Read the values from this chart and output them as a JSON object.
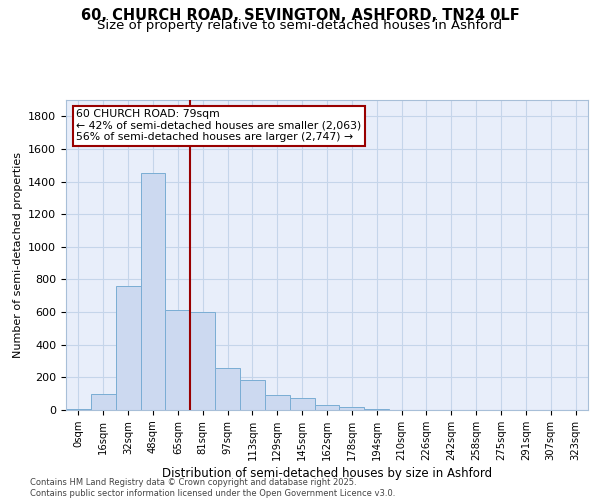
{
  "title1": "60, CHURCH ROAD, SEVINGTON, ASHFORD, TN24 0LF",
  "title2": "Size of property relative to semi-detached houses in Ashford",
  "xlabel": "Distribution of semi-detached houses by size in Ashford",
  "ylabel": "Number of semi-detached properties",
  "bar_labels": [
    "0sqm",
    "16sqm",
    "32sqm",
    "48sqm",
    "65sqm",
    "81sqm",
    "97sqm",
    "113sqm",
    "129sqm",
    "145sqm",
    "162sqm",
    "178sqm",
    "194sqm",
    "210sqm",
    "226sqm",
    "242sqm",
    "258sqm",
    "275sqm",
    "291sqm",
    "307sqm",
    "323sqm"
  ],
  "bar_values": [
    5,
    100,
    760,
    1450,
    610,
    600,
    255,
    185,
    90,
    75,
    30,
    20,
    5,
    0,
    0,
    0,
    0,
    0,
    0,
    0,
    0
  ],
  "bar_color": "#ccd9f0",
  "bar_edge_color": "#7aadd4",
  "grid_color": "#c5d5ea",
  "background_color": "#e8eefa",
  "vline_color": "#990000",
  "annotation_title": "60 CHURCH ROAD: 79sqm",
  "annotation_line1": "← 42% of semi-detached houses are smaller (2,063)",
  "annotation_line2": "56% of semi-detached houses are larger (2,747) →",
  "annotation_box_color": "#ffffff",
  "annotation_box_edge": "#990000",
  "ylim": [
    0,
    1900
  ],
  "yticks": [
    0,
    200,
    400,
    600,
    800,
    1000,
    1200,
    1400,
    1600,
    1800
  ],
  "footnote1": "Contains HM Land Registry data © Crown copyright and database right 2025.",
  "footnote2": "Contains public sector information licensed under the Open Government Licence v3.0.",
  "title1_fontsize": 10.5,
  "title2_fontsize": 9.5
}
